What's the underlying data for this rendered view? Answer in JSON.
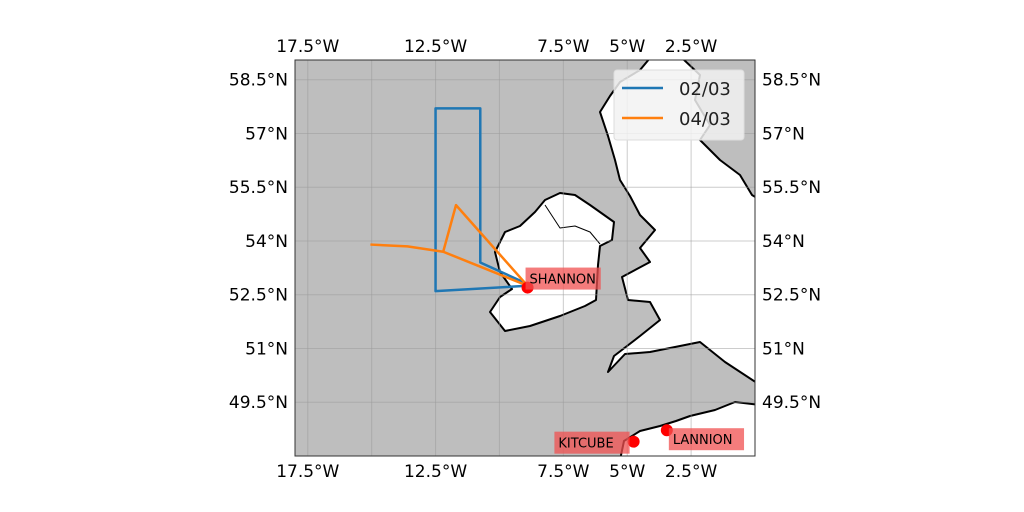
{
  "chart_data": {
    "type": "map",
    "extent": {
      "lon": [
        -18,
        0
      ],
      "lat": [
        48,
        59.05
      ]
    },
    "grid": true,
    "colors": {
      "ocean": "#bebebe",
      "land": "#ffffff",
      "coast": "#000000"
    },
    "lon_ticks": [
      {
        "value": -17.5,
        "label": "17.5°W"
      },
      {
        "value": -12.5,
        "label": "12.5°W"
      },
      {
        "value": -7.5,
        "label": "7.5°W"
      },
      {
        "value": -5,
        "label": "5°W"
      },
      {
        "value": -2.5,
        "label": "2.5°W"
      }
    ],
    "lon_gridlines": [
      -17.5,
      -15,
      -12.5,
      -10,
      -7.5,
      -5,
      -2.5
    ],
    "lat_ticks": [
      {
        "value": 58.5,
        "label": "58.5°N"
      },
      {
        "value": 57,
        "label": "57°N"
      },
      {
        "value": 55.5,
        "label": "55.5°N"
      },
      {
        "value": 54,
        "label": "54°N"
      },
      {
        "value": 52.5,
        "label": "52.5°N"
      },
      {
        "value": 51,
        "label": "51°N"
      },
      {
        "value": 49.5,
        "label": "49.5°N"
      }
    ],
    "legend": {
      "placement": "top-right"
    },
    "series": [
      {
        "name": "02/03",
        "color": "#1f77b4",
        "points": [
          [
            -8.9,
            52.75
          ],
          [
            -12.5,
            52.6
          ],
          [
            -12.5,
            57.7
          ],
          [
            -10.75,
            57.7
          ],
          [
            -10.75,
            53.4
          ],
          [
            -8.9,
            52.8
          ]
        ]
      },
      {
        "name": "04/03",
        "color": "#ff7f0e",
        "points": [
          [
            -15.05,
            53.9
          ],
          [
            -13.6,
            53.85
          ],
          [
            -12.2,
            53.7
          ],
          [
            -11.7,
            55.0
          ],
          [
            -8.9,
            52.75
          ],
          [
            -12.2,
            53.7
          ]
        ]
      }
    ],
    "sites": [
      {
        "name": "SHANNON",
        "lon": -8.9,
        "lat": 52.7,
        "label_side": "right-top"
      },
      {
        "name": "KITCUBE",
        "lon": -4.75,
        "lat": 48.4,
        "label_side": "left"
      },
      {
        "name": "LANNION",
        "lon": -3.45,
        "lat": 48.72,
        "label_side": "right"
      }
    ],
    "marker_color": "#ff0000"
  }
}
